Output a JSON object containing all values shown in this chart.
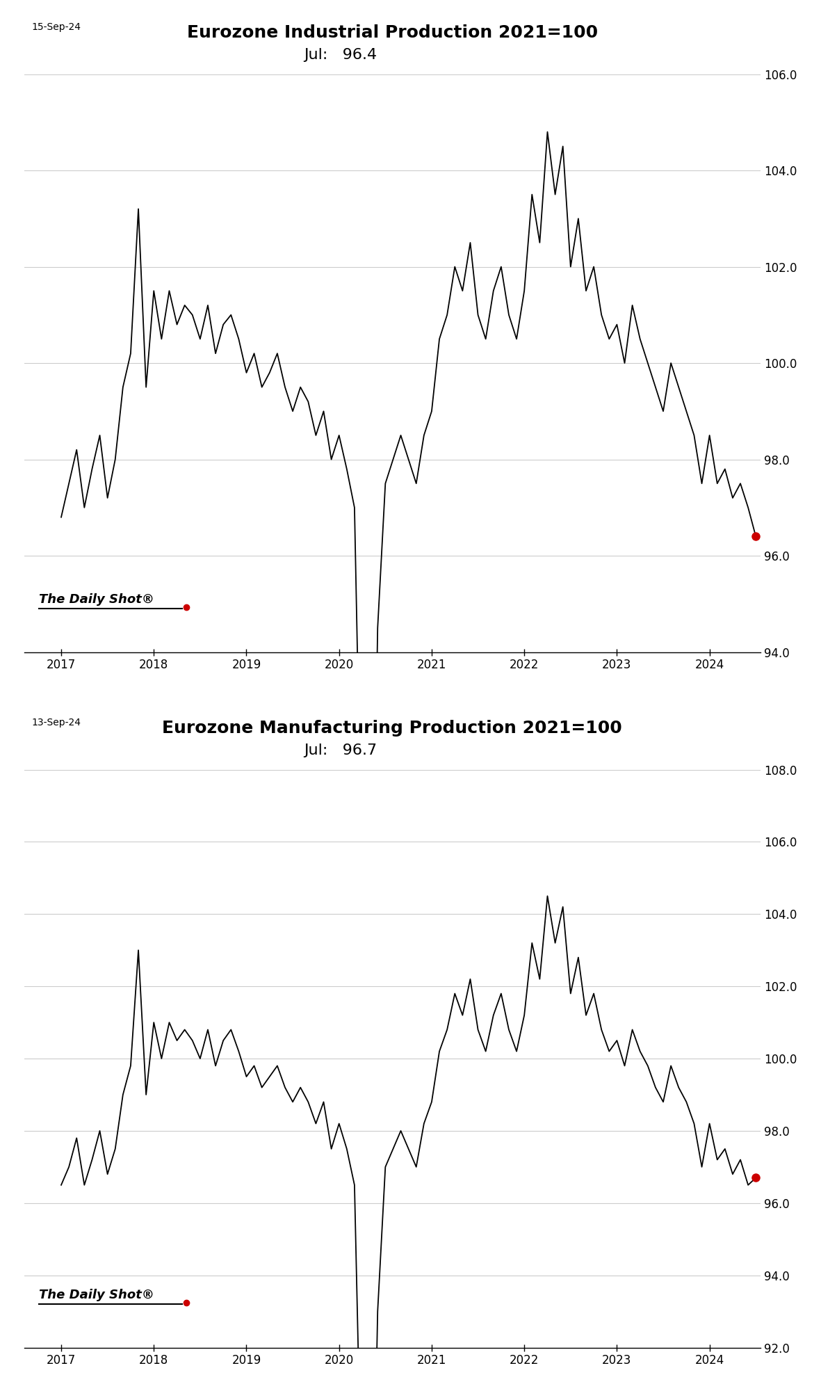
{
  "chart1": {
    "title": "Eurozone Industrial Production 2021=100",
    "date_label": "15-Sep-24",
    "subtitle": "Jul:   96.4",
    "watermark": "The Daily Shot®",
    "ylim": [
      94.0,
      106.0
    ],
    "yticks": [
      94.0,
      96.0,
      98.0,
      100.0,
      102.0,
      104.0,
      106.0
    ],
    "last_value": 96.4,
    "line_color": "#000000",
    "last_dot_color": "#cc0000",
    "grid_color": "#cccccc"
  },
  "chart2": {
    "title": "Eurozone Manufacturing Production 2021=100",
    "date_label": "13-Sep-24",
    "subtitle": "Jul:   96.7",
    "watermark": "The Daily Shot®",
    "ylim": [
      92.0,
      108.0
    ],
    "yticks": [
      92.0,
      94.0,
      96.0,
      98.0,
      100.0,
      102.0,
      104.0,
      106.0,
      108.0
    ],
    "last_value": 96.7,
    "line_color": "#000000",
    "last_dot_color": "#cc0000",
    "grid_color": "#cccccc"
  },
  "background_color": "#ffffff",
  "xlim": [
    2016.6,
    2024.55
  ],
  "x_year_ticks": [
    2017,
    2018,
    2019,
    2020,
    2021,
    2022,
    2023,
    2024
  ]
}
